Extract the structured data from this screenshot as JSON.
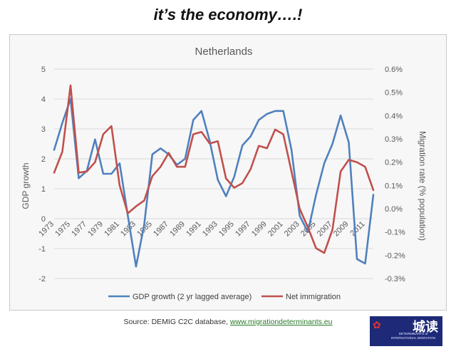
{
  "page_title": "it’s the economy….!",
  "source": {
    "prefix": "Source: DEMIG C2C database, ",
    "link": "www.migrationdeterminants.eu"
  },
  "logo": {
    "text": "城读",
    "subtext": "DETERMINANTS of INTERNATIONAL MIGRATION",
    "icon": "wechat-icon"
  },
  "colors": {
    "gdp": "#4f81bd",
    "migration": "#c0504d",
    "frame_bg": "#f7f7f7",
    "axis_text": "#595959"
  },
  "chart_data": {
    "type": "line",
    "title": "Netherlands",
    "ylabel": "GDP growth",
    "y2label": "Migration rate (% population)",
    "ylim": [
      -2,
      5
    ],
    "y2lim": [
      -0.003,
      0.006
    ],
    "y_ticks": [
      "-2",
      "-1",
      "0",
      "1",
      "2",
      "3",
      "4",
      "5"
    ],
    "y2_ticks": [
      "-0.3%",
      "-0.2%",
      "-0.1%",
      "0.0%",
      "0.1%",
      "0.2%",
      "0.3%",
      "0.4%",
      "0.5%",
      "0.6%"
    ],
    "x_ticks": [
      "1973",
      "1975",
      "1977",
      "1979",
      "1981",
      "1983",
      "1985",
      "1987",
      "1989",
      "1991",
      "1993",
      "1995",
      "1997",
      "1999",
      "2001",
      "2003",
      "2005",
      "2007",
      "2009",
      "2011"
    ],
    "x": [
      1973,
      1974,
      1975,
      1976,
      1977,
      1978,
      1979,
      1980,
      1981,
      1982,
      1983,
      1984,
      1985,
      1986,
      1987,
      1988,
      1989,
      1990,
      1991,
      1992,
      1993,
      1994,
      1995,
      1996,
      1997,
      1998,
      1999,
      2000,
      2001,
      2002,
      2003,
      2004,
      2005,
      2006,
      2007,
      2008,
      2009,
      2010,
      2011,
      2012
    ],
    "grid": true,
    "legend_position": "bottom",
    "series": [
      {
        "name": "GDP growth (2 yr lagged average)",
        "axis": "left",
        "values": [
          2.3,
          3.2,
          4.0,
          1.35,
          1.6,
          2.65,
          1.5,
          1.5,
          1.85,
          0.1,
          -1.6,
          -0.2,
          2.15,
          2.35,
          2.15,
          1.8,
          2.0,
          3.3,
          3.6,
          2.6,
          1.3,
          0.75,
          1.4,
          2.45,
          2.75,
          3.3,
          3.5,
          3.6,
          3.6,
          2.3,
          0.1,
          -0.45,
          0.8,
          1.85,
          2.5,
          3.45,
          2.55,
          -1.35,
          -1.5,
          0.8
        ]
      },
      {
        "name": "Net immigration",
        "axis": "right",
        "values": [
          0.00155,
          0.00245,
          0.0053,
          0.00155,
          0.0016,
          0.002,
          0.0032,
          0.00355,
          0.001,
          -0.0002,
          0.0001,
          0.00035,
          0.0014,
          0.0018,
          0.0024,
          0.0018,
          0.0018,
          0.0032,
          0.0033,
          0.0028,
          0.0029,
          0.0013,
          0.0009,
          0.0011,
          0.0017,
          0.0027,
          0.0026,
          0.0034,
          0.0032,
          0.0016,
          0.0,
          -0.0008,
          -0.0017,
          -0.0019,
          -0.0009,
          0.0016,
          0.0021,
          0.002,
          0.0018,
          0.0008
        ]
      }
    ]
  }
}
